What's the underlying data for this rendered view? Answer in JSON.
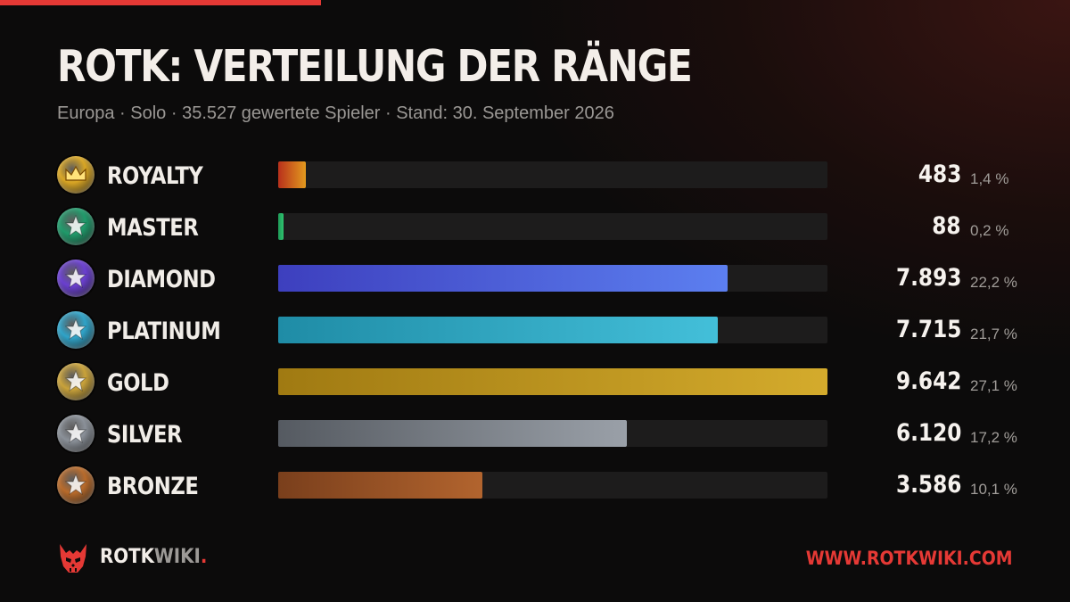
{
  "header": {
    "title": "ROTK: VERTEILUNG DER RÄNGE",
    "subtitle": "Europa · Solo · 35.527 gewertete Spieler · Stand: 30. September 2026"
  },
  "chart_data": {
    "type": "bar",
    "orientation": "horizontal",
    "categories": [
      "ROYALTY",
      "MASTER",
      "DIAMOND",
      "PLATINUM",
      "GOLD",
      "SILVER",
      "BRONZE"
    ],
    "values": [
      483,
      88,
      7893,
      7715,
      9642,
      6120,
      3586
    ],
    "value_labels": [
      "483",
      "88",
      "7.893",
      "7.715",
      "9.642",
      "6.120",
      "3.586"
    ],
    "percent_labels": [
      "1,4 %",
      "0,2 %",
      "22,2 %",
      "21,7 %",
      "27,1 %",
      "17,2 %",
      "10,1 %"
    ],
    "xlim": [
      0,
      9642
    ],
    "grid": false,
    "colors": [
      [
        "#b8301c",
        "#e39a1e"
      ],
      [
        "#1f9a58",
        "#2fc46f"
      ],
      [
        "#3d3fbe",
        "#5c7ff0"
      ],
      [
        "#1f8ca6",
        "#43bfd9"
      ],
      [
        "#a07a12",
        "#d4ab2c"
      ],
      [
        "#555a61",
        "#9aa0a8"
      ],
      [
        "#7a3f1c",
        "#b2642e"
      ]
    ],
    "icons": [
      "crown-badge-icon",
      "master-badge-icon",
      "diamond-badge-icon",
      "platinum-badge-icon",
      "gold-badge-icon",
      "silver-badge-icon",
      "bronze-badge-icon"
    ],
    "badge_colors": [
      "#d9a624",
      "#1f9a6a",
      "#6a3fd0",
      "#2fa3c8",
      "#c9a23a",
      "#8a9098",
      "#b86a2a"
    ]
  },
  "footer": {
    "brand_primary": "ROTK",
    "brand_secondary": "WIKI",
    "brand_dot": ".",
    "logo_icon": "demon-skull-logo-icon",
    "url": "WWW.ROTKWIKI.COM"
  }
}
